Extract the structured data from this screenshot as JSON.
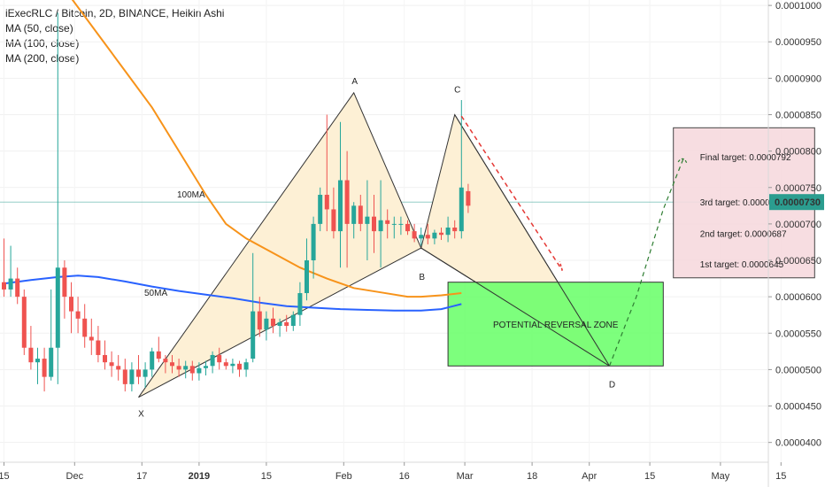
{
  "legend": {
    "title": "iExecRLC / Bitcoin, 2D, BINANCE, Heikin Ashi",
    "ma50": "MA (50, close)",
    "ma100": "MA (100, close)",
    "ma200": "MA (200, close)"
  },
  "colors": {
    "up": "#26a69a",
    "down": "#ef5350",
    "ma_orange": "#f7931a",
    "ma_blue": "#2962ff",
    "zone": "#66ff66",
    "target_box": "#f6d9de",
    "pattern_fill": "#fdf0d5",
    "current_price": "#2b9d8f"
  },
  "chart_data": {
    "type": "candlestick",
    "title": "iExecRLC / Bitcoin, 2D, BINANCE, Heikin Ashi",
    "y_ticks": [
      "0.0000400",
      "0.0000450",
      "0.0000500",
      "0.0000550",
      "0.0000600",
      "0.0000650",
      "0.0000700",
      "0.0000750",
      "0.0000800",
      "0.0000850",
      "0.0000900",
      "0.0000950",
      "0.0001000"
    ],
    "ylim": [
      3.85e-05,
      0.0001005
    ],
    "current_price": "0.0000730",
    "x_ticks": [
      {
        "label": "15",
        "t": 0
      },
      {
        "label": "Dec",
        "t": 10.5
      },
      {
        "label": "17",
        "t": 20.5
      },
      {
        "label": "2019",
        "t": 29
      },
      {
        "label": "15",
        "t": 39
      },
      {
        "label": "Feb",
        "t": 50.5
      },
      {
        "label": "16",
        "t": 59.5
      },
      {
        "label": "Mar",
        "t": 68.5
      },
      {
        "label": "18",
        "t": 78.5
      },
      {
        "label": "Apr",
        "t": 87
      },
      {
        "label": "15",
        "t": 96
      },
      {
        "label": "May",
        "t": 106.5
      },
      {
        "label": "15",
        "t": 115.5
      }
    ],
    "candles": [
      [
        6.2e-05,
        6.8e-05,
        6e-05,
        6.1e-05
      ],
      [
        6.1e-05,
        6.7e-05,
        6e-05,
        6.25e-05
      ],
      [
        6.25e-05,
        6.4e-05,
        5.9e-05,
        6e-05
      ],
      [
        6e-05,
        6.1e-05,
        5.2e-05,
        5.3e-05
      ],
      [
        5.3e-05,
        5.6e-05,
        5e-05,
        5.1e-05
      ],
      [
        5.1e-05,
        5.3e-05,
        4.8e-05,
        5.15e-05
      ],
      [
        5.15e-05,
        5.3e-05,
        4.7e-05,
        4.9e-05
      ],
      [
        4.9e-05,
        6.1e-05,
        4.85e-05,
        5.3e-05
      ],
      [
        5.3e-05,
        9.9e-05,
        4.8e-05,
        6.4e-05
      ],
      [
        6.4e-05,
        6.5e-05,
        5.7e-05,
        6e-05
      ],
      [
        6e-05,
        6.2e-05,
        5.5e-05,
        5.8e-05
      ],
      [
        5.8e-05,
        6e-05,
        5.5e-05,
        5.7e-05
      ],
      [
        5.7e-05,
        5.9e-05,
        5.3e-05,
        5.45e-05
      ],
      [
        5.45e-05,
        5.7e-05,
        5.2e-05,
        5.4e-05
      ],
      [
        5.4e-05,
        5.6e-05,
        5.1e-05,
        5.2e-05
      ],
      [
        5.2e-05,
        5.4e-05,
        5e-05,
        5.1e-05
      ],
      [
        5.1e-05,
        5.25e-05,
        4.9e-05,
        5.05e-05
      ],
      [
        5.05e-05,
        5.2e-05,
        4.85e-05,
        5e-05
      ],
      [
        5e-05,
        5.15e-05,
        4.7e-05,
        4.8e-05
      ],
      [
        4.8e-05,
        5.1e-05,
        4.7e-05,
        5e-05
      ],
      [
        5e-05,
        5.2e-05,
        4.8e-05,
        4.9e-05
      ],
      [
        4.9e-05,
        5.1e-05,
        4.75e-05,
        5e-05
      ],
      [
        5e-05,
        5.3e-05,
        4.9e-05,
        5.25e-05
      ],
      [
        5.25e-05,
        5.45e-05,
        5.1e-05,
        5.15e-05
      ],
      [
        5.15e-05,
        5.2e-05,
        4.95e-05,
        5.1e-05
      ],
      [
        5.1e-05,
        5.2e-05,
        4.95e-05,
        5.05e-05
      ],
      [
        5.05e-05,
        5.15e-05,
        4.9e-05,
        5e-05
      ],
      [
        5e-05,
        5.12e-05,
        4.88e-05,
        5.05e-05
      ],
      [
        5.05e-05,
        5.12e-05,
        4.85e-05,
        4.95e-05
      ],
      [
        4.95e-05,
        5.1e-05,
        4.85e-05,
        5.02e-05
      ],
      [
        5.02e-05,
        5.12e-05,
        4.92e-05,
        5.05e-05
      ],
      [
        5.05e-05,
        5.25e-05,
        4.95e-05,
        5.2e-05
      ],
      [
        5.2e-05,
        5.3e-05,
        5e-05,
        5.1e-05
      ],
      [
        5.1e-05,
        5.15e-05,
        5e-05,
        5.05e-05
      ],
      [
        5.05e-05,
        5.15e-05,
        4.95e-05,
        5.08e-05
      ],
      [
        5.08e-05,
        5.12e-05,
        4.9e-05,
        5e-05
      ],
      [
        5e-05,
        5.15e-05,
        4.9e-05,
        5.1e-05
      ],
      [
        5.15e-05,
        6.6e-05,
        5.1e-05,
        5.8e-05
      ],
      [
        5.8e-05,
        6e-05,
        5.45e-05,
        5.55e-05
      ],
      [
        5.55e-05,
        5.8e-05,
        5.4e-05,
        5.7e-05
      ],
      [
        5.7e-05,
        5.85e-05,
        5.5e-05,
        5.6e-05
      ],
      [
        5.6e-05,
        5.7e-05,
        5.45e-05,
        5.65e-05
      ],
      [
        5.65e-05,
        5.75e-05,
        5.52e-05,
        5.6e-05
      ],
      [
        5.6e-05,
        5.8e-05,
        5.53e-05,
        5.75e-05
      ],
      [
        5.75e-05,
        6.2e-05,
        5.6e-05,
        6.05e-05
      ],
      [
        6.05e-05,
        6.8e-05,
        5.95e-05,
        6.5e-05
      ],
      [
        6.5e-05,
        7.1e-05,
        6.25e-05,
        7e-05
      ],
      [
        7e-05,
        7.5e-05,
        6.9e-05,
        7.4e-05
      ],
      [
        7.4e-05,
        8.5e-05,
        6.9e-05,
        7.2e-05
      ],
      [
        7.2e-05,
        7.5e-05,
        6.8e-05,
        6.9e-05
      ],
      [
        6.9e-05,
        8.4e-05,
        6.4e-05,
        7.6e-05
      ],
      [
        7.6e-05,
        8e-05,
        6.4e-05,
        7e-05
      ],
      [
        7e-05,
        7.3e-05,
        6.8e-05,
        7.25e-05
      ],
      [
        7.25e-05,
        7.4e-05,
        6.9e-05,
        7e-05
      ],
      [
        7e-05,
        7.6e-05,
        6.5e-05,
        7.1e-05
      ],
      [
        7.1e-05,
        7.4e-05,
        6.6e-05,
        6.9e-05
      ],
      [
        6.9e-05,
        7.6e-05,
        6.4e-05,
        7.05e-05
      ],
      [
        7.05e-05,
        7.2e-05,
        6.8e-05,
        7e-05
      ],
      [
        7e-05,
        7.1e-05,
        6.8e-05,
        7e-05
      ],
      [
        7e-05,
        7.1e-05,
        6.85e-05,
        7e-05
      ],
      [
        7e-05,
        7.05e-05,
        6.85e-05,
        6.9e-05
      ],
      [
        6.9e-05,
        7e-05,
        6.75e-05,
        6.8e-05
      ],
      [
        6.8e-05,
        6.95e-05,
        6.7e-05,
        6.85e-05
      ],
      [
        6.85e-05,
        7e-05,
        6.72e-05,
        6.8e-05
      ],
      [
        6.8e-05,
        6.92e-05,
        6.72e-05,
        6.88e-05
      ],
      [
        6.88e-05,
        6.95e-05,
        6.78e-05,
        6.85e-05
      ],
      [
        6.85e-05,
        7.1e-05,
        6.75e-05,
        6.95e-05
      ],
      [
        6.95e-05,
        7.05e-05,
        6.8e-05,
        6.9e-05
      ],
      [
        6.9e-05,
        8.7e-05,
        6.8e-05,
        7.5e-05
      ],
      [
        7.45e-05,
        7.55e-05,
        7.15e-05,
        7.25e-05
      ]
    ],
    "ma_orange": [
      [
        10,
        0.000101
      ],
      [
        14,
        9.6e-05
      ],
      [
        18,
        9.1e-05
      ],
      [
        22,
        8.6e-05
      ],
      [
        26,
        8e-05
      ],
      [
        30,
        7.4e-05
      ],
      [
        33,
        7e-05
      ],
      [
        36,
        6.8e-05
      ],
      [
        40,
        6.6e-05
      ],
      [
        44,
        6.4e-05
      ],
      [
        48,
        6.25e-05
      ],
      [
        52,
        6.12e-05
      ],
      [
        56,
        6.06e-05
      ],
      [
        60,
        6e-05
      ],
      [
        62,
        6e-05
      ],
      [
        65,
        6.02e-05
      ],
      [
        68,
        6.05e-05
      ]
    ],
    "ma_blue": [
      [
        0,
        6.18e-05
      ],
      [
        4,
        6.23e-05
      ],
      [
        8,
        6.27e-05
      ],
      [
        11,
        6.29e-05
      ],
      [
        14,
        6.27e-05
      ],
      [
        18,
        6.21e-05
      ],
      [
        22,
        6.14e-05
      ],
      [
        26,
        6.08e-05
      ],
      [
        30,
        6.03e-05
      ],
      [
        34,
        5.98e-05
      ],
      [
        38,
        5.92e-05
      ],
      [
        42,
        5.87e-05
      ],
      [
        46,
        5.85e-05
      ],
      [
        50,
        5.83e-05
      ],
      [
        54,
        5.82e-05
      ],
      [
        58,
        5.81e-05
      ],
      [
        62,
        5.81e-05
      ],
      [
        65,
        5.83e-05
      ],
      [
        68,
        5.9e-05
      ]
    ]
  },
  "annotations": {
    "ma100_label": "100MA",
    "ma50_label": "50MA",
    "x_label": "X",
    "a_label": "A",
    "b_label": "B",
    "c_label": "C",
    "d_label": "D",
    "zone_label": "POTENTIAL REVERSAL ZONE",
    "targets": [
      {
        "label": "Final target: 0.0000792",
        "price": 7.92e-05
      },
      {
        "label": "3rd target: 0.0000730",
        "price": 7.3e-05
      },
      {
        "label": "2nd target: 0.0000687",
        "price": 6.87e-05
      },
      {
        "label": "1st target: 0.0000645",
        "price": 6.45e-05
      }
    ],
    "points": {
      "X": {
        "t": 20,
        "p": 4.62e-05
      },
      "A": {
        "t": 52,
        "p": 8.8e-05
      },
      "B": {
        "t": 62,
        "p": 6.67e-05
      },
      "C": {
        "t": 67,
        "p": 8.5e-05
      },
      "D": {
        "t": 90,
        "p": 5.05e-05
      }
    },
    "zone": {
      "t0": 66,
      "t1": 98,
      "p0": 5.05e-05,
      "p1": 6.2e-05
    },
    "target_box": {
      "t0": 99.5,
      "t1": 120.5,
      "p0": 6.26e-05,
      "p1": 8.32e-05
    },
    "red_projection": {
      "t0": 68,
      "p0": 8.48e-05,
      "t1": 83,
      "p1": 6.36e-05
    },
    "green_projection": [
      [
        90,
        5.05e-05
      ],
      [
        94,
        6e-05
      ],
      [
        98,
        7.2e-05
      ],
      [
        101,
        7.9e-05
      ]
    ]
  }
}
